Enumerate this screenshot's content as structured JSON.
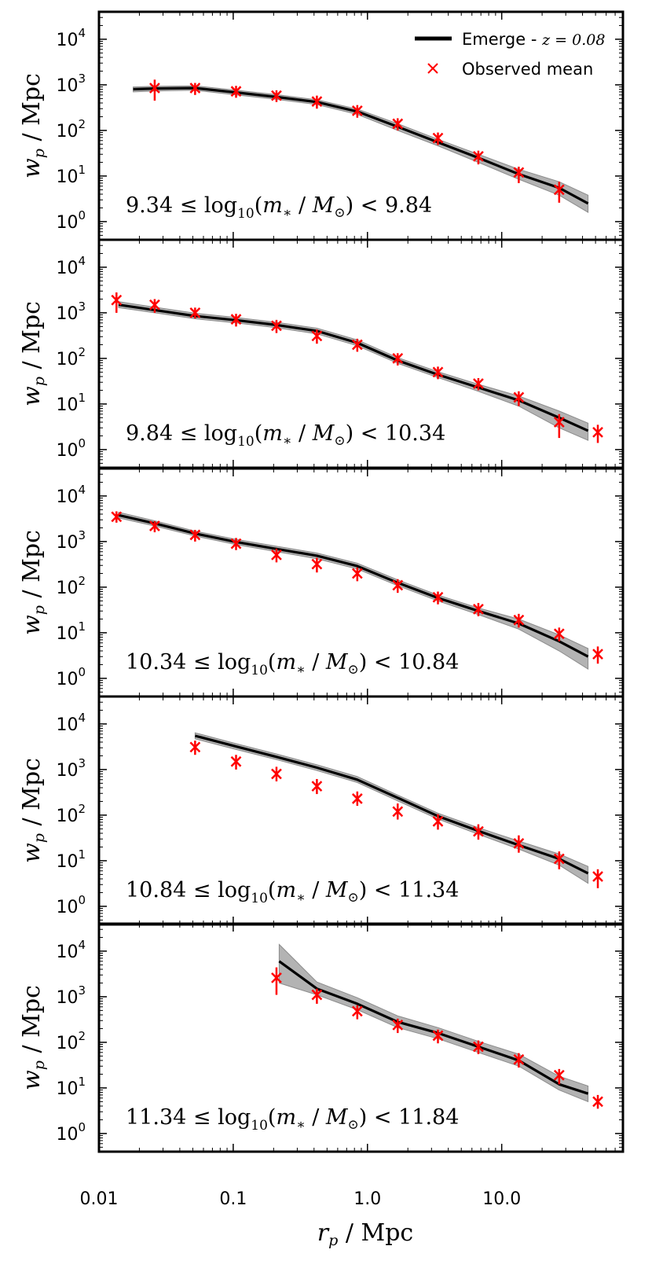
{
  "chart_data": {
    "type": "line",
    "xscale": "log",
    "yscale": "log",
    "xlim": [
      0.01,
      80
    ],
    "ylim": [
      0.4,
      40000
    ],
    "xlabel": "r_p / Mpc",
    "ylabel": "w_p / Mpc",
    "x_ticks": [
      {
        "value": 0.01,
        "label": "0.01"
      },
      {
        "value": 0.1,
        "label": "0.1"
      },
      {
        "value": 1.0,
        "label": "1.0"
      },
      {
        "value": 10.0,
        "label": "10.0"
      }
    ],
    "y_ticks": [
      {
        "value": 1,
        "base": "10",
        "exp": "0"
      },
      {
        "value": 10,
        "base": "10",
        "exp": "1"
      },
      {
        "value": 100,
        "base": "10",
        "exp": "2"
      },
      {
        "value": 1000,
        "base": "10",
        "exp": "3"
      },
      {
        "value": 10000,
        "base": "10",
        "exp": "4"
      }
    ],
    "legend": {
      "position": "top-right",
      "entries": [
        {
          "label": "Emerge - ",
          "math": "z = 0.08",
          "style": "line"
        },
        {
          "label": "Observed mean",
          "style": "x-marker"
        }
      ]
    },
    "panels": [
      {
        "mass_label": {
          "low": "9.34",
          "high": "9.84"
        },
        "model": {
          "x": [
            0.018,
            0.026,
            0.052,
            0.105,
            0.21,
            0.42,
            0.84,
            1.68,
            3.35,
            6.7,
            13.4,
            26.8,
            44
          ],
          "y": [
            800,
            830,
            850,
            680,
            540,
            420,
            260,
            120,
            55,
            25,
            11,
            5.5,
            2.5
          ],
          "lower": [
            700,
            730,
            760,
            600,
            480,
            370,
            225,
            100,
            46,
            20,
            8.5,
            3.8,
            1.6
          ],
          "upper": [
            900,
            930,
            950,
            760,
            610,
            470,
            295,
            140,
            64,
            30,
            14,
            7.5,
            3.8
          ]
        },
        "observed": {
          "x": [
            0.026,
            0.052,
            0.105,
            0.21,
            0.42,
            0.84,
            1.68,
            3.35,
            6.7,
            13.4,
            26.8
          ],
          "y": [
            850,
            850,
            720,
            580,
            430,
            270,
            140,
            68,
            27,
            12,
            5
          ],
          "err_low": [
            450,
            600,
            520,
            420,
            300,
            190,
            100,
            48,
            18,
            7,
            2.6
          ],
          "err_high": [
            1300,
            1100,
            950,
            760,
            580,
            360,
            185,
            90,
            36,
            16,
            7.5
          ]
        }
      },
      {
        "mass_label": {
          "low": "9.84",
          "high": "10.34"
        },
        "model": {
          "x": [
            0.014,
            0.026,
            0.052,
            0.105,
            0.21,
            0.42,
            0.84,
            1.68,
            3.35,
            6.7,
            13.4,
            26.8,
            44
          ],
          "y": [
            1500,
            1150,
            850,
            690,
            540,
            400,
            220,
            90,
            44,
            23,
            12,
            5,
            2.6
          ],
          "lower": [
            1300,
            1000,
            740,
            600,
            470,
            345,
            190,
            78,
            38,
            19,
            9,
            3,
            1.6
          ],
          "upper": [
            1750,
            1330,
            980,
            790,
            620,
            460,
            255,
            104,
            51,
            27,
            15,
            7,
            3.8
          ]
        },
        "observed": {
          "x": [
            0.0135,
            0.026,
            0.052,
            0.105,
            0.21,
            0.42,
            0.84,
            1.68,
            3.35,
            6.7,
            13.4,
            26.8,
            52
          ],
          "y": [
            1900,
            1500,
            1000,
            720,
            520,
            310,
            200,
            100,
            50,
            28,
            14,
            4,
            2.4
          ],
          "err_low": [
            1000,
            1000,
            750,
            500,
            360,
            210,
            140,
            70,
            35,
            20,
            9,
            1.8,
            1.4
          ],
          "err_high": [
            2800,
            2000,
            1300,
            950,
            700,
            430,
            270,
            130,
            66,
            37,
            19,
            6,
            3.5
          ]
        }
      },
      {
        "mass_label": {
          "low": "10.34",
          "high": "10.84"
        },
        "model": {
          "x": [
            0.014,
            0.026,
            0.052,
            0.105,
            0.21,
            0.42,
            0.84,
            1.68,
            3.35,
            6.7,
            13.4,
            26.8,
            44
          ],
          "y": [
            3800,
            2500,
            1500,
            980,
            690,
            490,
            290,
            125,
            58,
            30,
            16,
            6.5,
            3
          ],
          "lower": [
            3300,
            2200,
            1320,
            860,
            600,
            420,
            250,
            108,
            50,
            25,
            12,
            4,
            1.6
          ],
          "upper": [
            4400,
            2850,
            1700,
            1120,
            790,
            560,
            335,
            145,
            67,
            35,
            20,
            9,
            4.5
          ]
        },
        "observed": {
          "x": [
            0.0135,
            0.026,
            0.052,
            0.105,
            0.21,
            0.42,
            0.84,
            1.68,
            3.35,
            6.7,
            13.4,
            26.8,
            52
          ],
          "y": [
            3500,
            2200,
            1400,
            900,
            510,
            320,
            200,
            110,
            60,
            33,
            19,
            9.5,
            3.4
          ],
          "err_low": [
            2600,
            1600,
            1000,
            650,
            350,
            210,
            135,
            75,
            42,
            23,
            13,
            6.5,
            2.1
          ],
          "err_high": [
            4600,
            2800,
            1800,
            1200,
            700,
            440,
            270,
            150,
            80,
            45,
            26,
            13,
            5
          ]
        }
      },
      {
        "mass_label": {
          "low": "10.84",
          "high": "11.34"
        },
        "model": {
          "x": [
            0.052,
            0.105,
            0.21,
            0.42,
            0.84,
            1.68,
            3.35,
            6.7,
            13.4,
            26.8,
            44
          ],
          "y": [
            5500,
            3200,
            1900,
            1100,
            600,
            240,
            95,
            45,
            22,
            11,
            5.3
          ],
          "lower": [
            4700,
            2750,
            1650,
            950,
            520,
            205,
            82,
            38,
            18,
            8,
            3.2
          ],
          "upper": [
            6400,
            3700,
            2200,
            1270,
            700,
            275,
            110,
            53,
            27,
            14,
            7.5
          ]
        },
        "observed": {
          "x": [
            0.052,
            0.105,
            0.21,
            0.42,
            0.84,
            1.68,
            3.35,
            6.7,
            13.4,
            26.8,
            52
          ],
          "y": [
            3100,
            1500,
            800,
            430,
            230,
            120,
            73,
            44,
            24,
            11,
            4.5
          ],
          "err_low": [
            2100,
            1000,
            550,
            290,
            160,
            80,
            48,
            29,
            15,
            6.5,
            2.5
          ],
          "err_high": [
            4300,
            2100,
            1150,
            620,
            330,
            180,
            105,
            63,
            36,
            16,
            6.5
          ]
        }
      },
      {
        "mass_label": {
          "low": "11.34",
          "high": "11.84"
        },
        "model": {
          "x": [
            0.22,
            0.42,
            0.84,
            1.68,
            3.35,
            6.7,
            13.4,
            26.8,
            44
          ],
          "y": [
            6000,
            1500,
            700,
            280,
            160,
            80,
            40,
            12,
            7.5
          ],
          "lower": [
            2000,
            1100,
            520,
            210,
            120,
            60,
            30,
            9,
            5
          ],
          "upper": [
            14000,
            2100,
            950,
            380,
            210,
            105,
            55,
            18,
            11
          ]
        },
        "observed": {
          "x": [
            0.21,
            0.42,
            0.84,
            1.68,
            3.35,
            6.7,
            13.4,
            26.8,
            52
          ],
          "y": [
            2600,
            1100,
            480,
            240,
            140,
            80,
            42,
            19,
            5
          ],
          "err_low": [
            1100,
            700,
            320,
            160,
            95,
            55,
            28,
            12,
            3.5
          ],
          "err_high": [
            4400,
            1500,
            650,
            330,
            190,
            110,
            58,
            26,
            7
          ]
        }
      }
    ]
  }
}
